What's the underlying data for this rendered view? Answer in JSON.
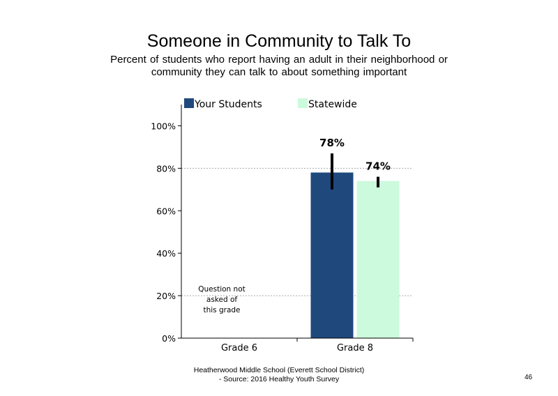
{
  "page": {
    "title": "Someone in Community to Talk To",
    "subtitle": "Percent of students who report having an adult in their neighborhood or community they can talk to about something important",
    "footer_line1": "Heatherwood Middle School (Everett School District)",
    "footer_line2": "- Source: 2016 Healthy Youth Survey",
    "page_number": "46"
  },
  "chart_data": {
    "type": "bar",
    "categories": [
      "Grade 6",
      "Grade 8"
    ],
    "series": [
      {
        "name": "Your Students",
        "color": "#1F497D",
        "values": [
          null,
          78
        ],
        "labels": [
          "",
          "78%"
        ],
        "error": [
          null,
          [
            70,
            87
          ]
        ]
      },
      {
        "name": "Statewide",
        "color": "#CCFADC",
        "values": [
          null,
          74
        ],
        "labels": [
          "",
          "74%"
        ],
        "error": [
          null,
          [
            71,
            76
          ]
        ]
      }
    ],
    "ylim": [
      0,
      110
    ],
    "yticks": [
      0,
      20,
      40,
      60,
      80,
      100
    ],
    "ytick_labels": [
      "0%",
      "20%",
      "40%",
      "60%",
      "80%",
      "100%"
    ],
    "gridlines": [
      20,
      80
    ],
    "legend_position": "top",
    "annotation": {
      "category": "Grade 6",
      "lines": [
        "Question not",
        "asked of",
        "this grade"
      ]
    }
  }
}
